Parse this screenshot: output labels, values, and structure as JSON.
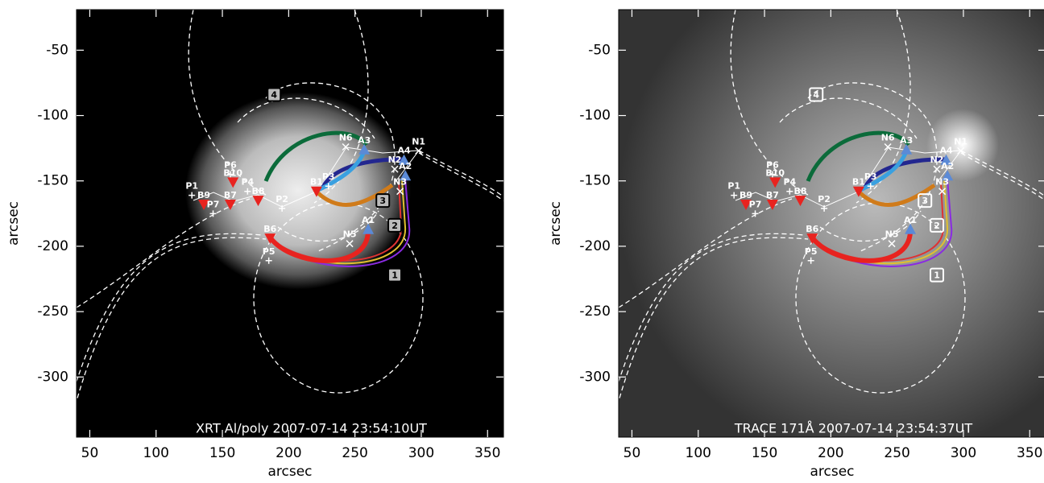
{
  "chart_data": [
    {
      "type": "image",
      "annotation": "XRT Al/poly 2007-07-14 23:54:10UT",
      "xlabel": "arcsec",
      "ylabel": "arcsec",
      "xlim": [
        40,
        362
      ],
      "ylim": [
        -346,
        -19
      ],
      "xticks": [
        50,
        100,
        150,
        200,
        250,
        300,
        350
      ],
      "yticks": [
        -50,
        -100,
        -150,
        -200,
        -250,
        -300
      ],
      "points": [
        {
          "label": "P1",
          "x": 127,
          "y": -161
        },
        {
          "label": "B9",
          "x": 136,
          "y": -168
        },
        {
          "label": "P7",
          "x": 143,
          "y": -175
        },
        {
          "label": "B7",
          "x": 156,
          "y": -168
        },
        {
          "label": "P6",
          "x": 156,
          "y": -145
        },
        {
          "label": "B10",
          "x": 158,
          "y": -151
        },
        {
          "label": "P4",
          "x": 169,
          "y": -158
        },
        {
          "label": "B8",
          "x": 177,
          "y": -165
        },
        {
          "label": "P2",
          "x": 195,
          "y": -171
        },
        {
          "label": "P5",
          "x": 185,
          "y": -211
        },
        {
          "label": "B6",
          "x": 186,
          "y": -194
        },
        {
          "label": "B1",
          "x": 221,
          "y": -158
        },
        {
          "label": "P3",
          "x": 230,
          "y": -154
        },
        {
          "label": "N6",
          "x": 243,
          "y": -124
        },
        {
          "label": "A3",
          "x": 257,
          "y": -126
        },
        {
          "label": "N1",
          "x": 298,
          "y": -127
        },
        {
          "label": "N2",
          "x": 280,
          "y": -141
        },
        {
          "label": "A4",
          "x": 287,
          "y": -134
        },
        {
          "label": "A2",
          "x": 288,
          "y": -146
        },
        {
          "label": "N3",
          "x": 284,
          "y": -158
        },
        {
          "label": "A1",
          "x": 260,
          "y": -187
        },
        {
          "label": "N5",
          "x": 246,
          "y": -198
        }
      ],
      "boxes": [
        {
          "label": "1",
          "x": 280,
          "y": -222
        },
        {
          "label": "2",
          "x": 280,
          "y": -184
        },
        {
          "label": "3",
          "x": 271,
          "y": -165
        },
        {
          "label": "4",
          "x": 189,
          "y": -84
        }
      ]
    },
    {
      "type": "image",
      "annotation": "TRACE 171Å 2007-07-14 23:54:37UT",
      "xlabel": "arcsec",
      "ylabel": "arcsec",
      "xlim": [
        40,
        362
      ],
      "ylim": [
        -346,
        -19
      ],
      "xticks": [
        50,
        100,
        150,
        200,
        250,
        300,
        350
      ],
      "yticks": [
        -50,
        -100,
        -150,
        -200,
        -250,
        -300
      ],
      "points": [
        {
          "label": "P1",
          "x": 127,
          "y": -161
        },
        {
          "label": "B9",
          "x": 136,
          "y": -168
        },
        {
          "label": "P7",
          "x": 143,
          "y": -175
        },
        {
          "label": "B7",
          "x": 156,
          "y": -168
        },
        {
          "label": "P6",
          "x": 156,
          "y": -145
        },
        {
          "label": "B10",
          "x": 158,
          "y": -151
        },
        {
          "label": "P4",
          "x": 169,
          "y": -158
        },
        {
          "label": "B8",
          "x": 177,
          "y": -165
        },
        {
          "label": "P2",
          "x": 195,
          "y": -171
        },
        {
          "label": "P5",
          "x": 185,
          "y": -211
        },
        {
          "label": "B6",
          "x": 186,
          "y": -194
        },
        {
          "label": "B1",
          "x": 221,
          "y": -158
        },
        {
          "label": "P3",
          "x": 230,
          "y": -154
        },
        {
          "label": "N6",
          "x": 243,
          "y": -124
        },
        {
          "label": "A3",
          "x": 257,
          "y": -126
        },
        {
          "label": "N1",
          "x": 298,
          "y": -127
        },
        {
          "label": "N2",
          "x": 280,
          "y": -141
        },
        {
          "label": "A4",
          "x": 287,
          "y": -134
        },
        {
          "label": "A2",
          "x": 288,
          "y": -146
        },
        {
          "label": "N3",
          "x": 284,
          "y": -158
        },
        {
          "label": "A1",
          "x": 260,
          "y": -187
        },
        {
          "label": "N5",
          "x": 246,
          "y": -198
        }
      ],
      "boxes": [
        {
          "label": "1",
          "x": 280,
          "y": -222
        },
        {
          "label": "2",
          "x": 280,
          "y": -184
        },
        {
          "label": "3",
          "x": 271,
          "y": -165
        },
        {
          "label": "4",
          "x": 189,
          "y": -84
        }
      ]
    }
  ]
}
